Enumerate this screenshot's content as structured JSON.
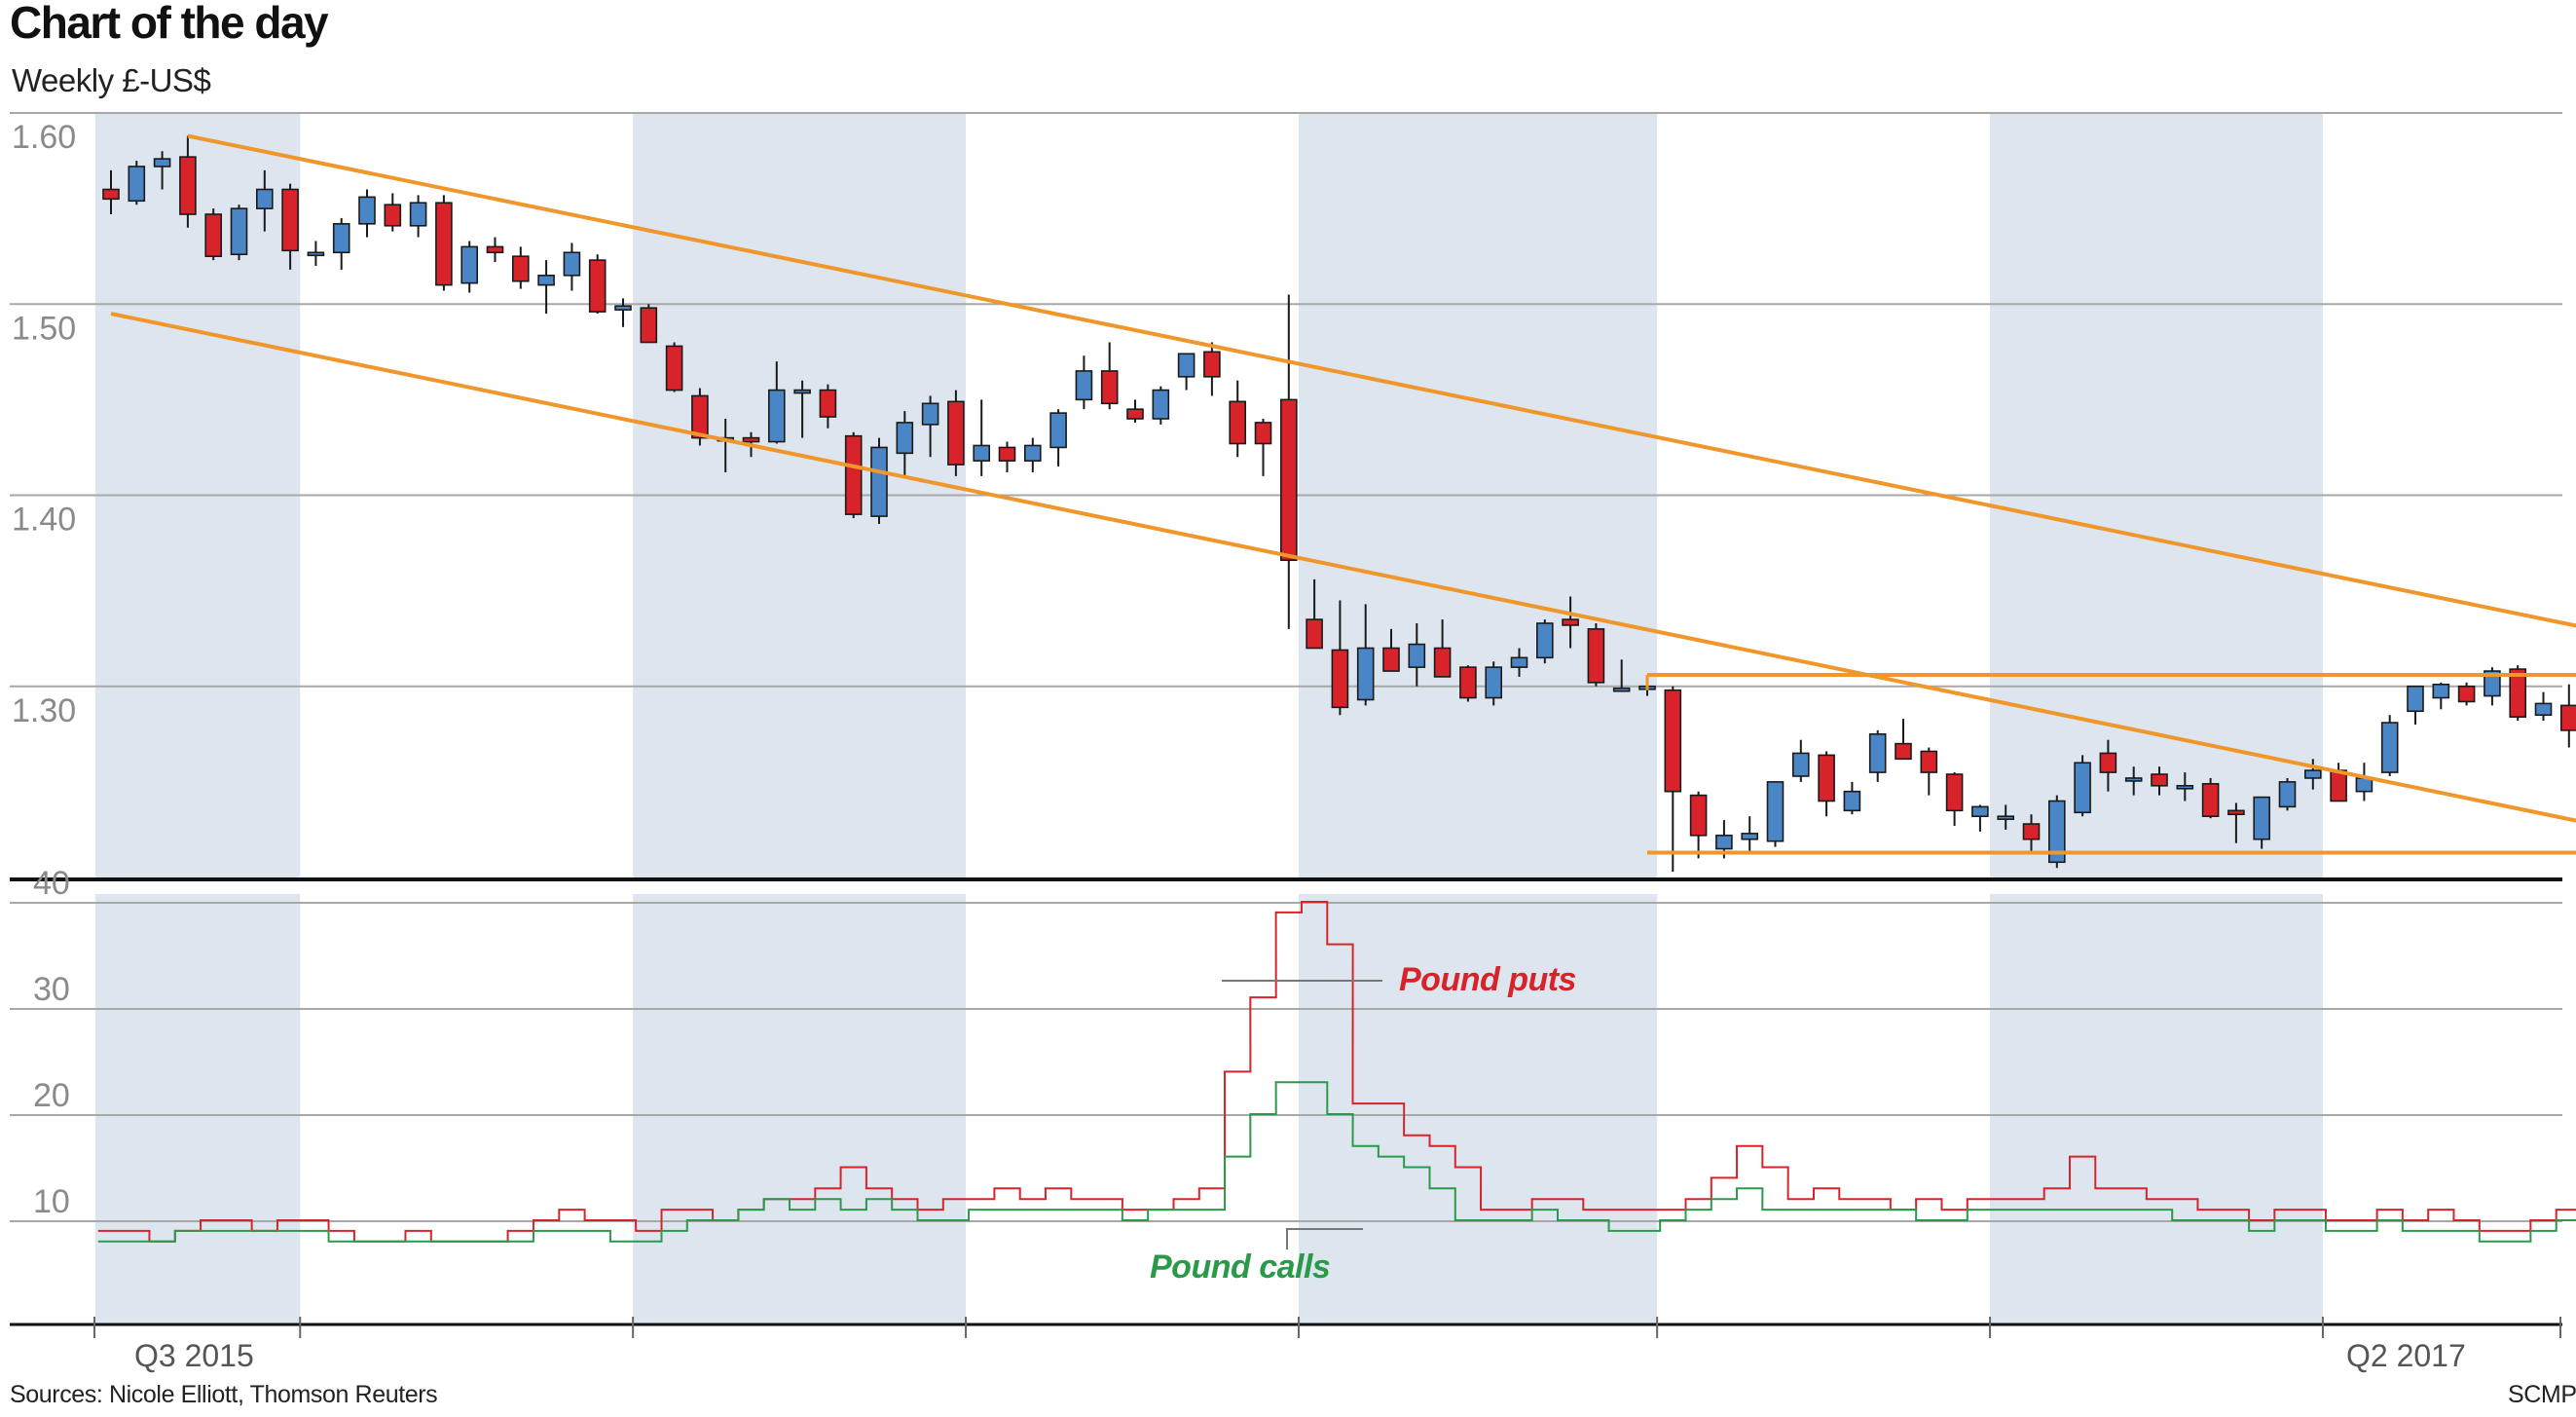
{
  "header": {
    "title": "Chart of the day",
    "subtitle": "Weekly £-US$"
  },
  "footer": {
    "source": "Sources: Nicole Elliott, Thomson Reuters",
    "credit": "SCMP"
  },
  "colors": {
    "up": "#4a86c5",
    "down": "#d9232a",
    "trend": "#f0962a",
    "band": "#dde6ee",
    "puts": "#d9232a",
    "calls": "#2a9a4a"
  },
  "chart_data": [
    {
      "type": "candlestick",
      "name": "price",
      "ylabel": "",
      "ylim": [
        1.2,
        1.6
      ],
      "yticks": [
        1.6,
        1.5,
        1.4,
        1.3
      ],
      "ytick_labels": [
        "1.60",
        "1.50",
        "1.40",
        "1.30"
      ],
      "x_labels": [
        {
          "label": "Q3 2015",
          "week": 1.5
        },
        {
          "label": "Q2 2017",
          "week": 94.5
        }
      ],
      "shaded_week_ranges": [
        [
          0,
          8
        ],
        [
          21,
          34
        ],
        [
          47,
          61
        ],
        [
          74,
          87
        ]
      ],
      "ohlc": [
        [
          1.56,
          1.57,
          1.547,
          1.555
        ],
        [
          1.554,
          1.575,
          1.552,
          1.572
        ],
        [
          1.572,
          1.58,
          1.56,
          1.576
        ],
        [
          1.577,
          1.588,
          1.54,
          1.547
        ],
        [
          1.547,
          1.55,
          1.523,
          1.525
        ],
        [
          1.526,
          1.552,
          1.523,
          1.55
        ],
        [
          1.55,
          1.57,
          1.538,
          1.56
        ],
        [
          1.56,
          1.563,
          1.518,
          1.528
        ],
        [
          1.527,
          1.533,
          1.52,
          1.527
        ],
        [
          1.527,
          1.545,
          1.518,
          1.542
        ],
        [
          1.542,
          1.56,
          1.535,
          1.556
        ],
        [
          1.552,
          1.558,
          1.538,
          1.541
        ],
        [
          1.541,
          1.557,
          1.535,
          1.553
        ],
        [
          1.553,
          1.557,
          1.507,
          1.51
        ],
        [
          1.511,
          1.533,
          1.506,
          1.53
        ],
        [
          1.53,
          1.535,
          1.522,
          1.527
        ],
        [
          1.525,
          1.53,
          1.508,
          1.512
        ],
        [
          1.51,
          1.523,
          1.495,
          1.515
        ],
        [
          1.515,
          1.532,
          1.507,
          1.527
        ],
        [
          1.523,
          1.526,
          1.495,
          1.496
        ],
        [
          1.497,
          1.503,
          1.488,
          1.499
        ],
        [
          1.498,
          1.5,
          1.48,
          1.48
        ],
        [
          1.478,
          1.48,
          1.454,
          1.455
        ],
        [
          1.452,
          1.456,
          1.426,
          1.43
        ],
        [
          1.43,
          1.44,
          1.412,
          1.43
        ],
        [
          1.43,
          1.433,
          1.42,
          1.428
        ],
        [
          1.428,
          1.47,
          1.427,
          1.455
        ],
        [
          1.455,
          1.46,
          1.43,
          1.455
        ],
        [
          1.455,
          1.458,
          1.435,
          1.441
        ],
        [
          1.431,
          1.433,
          1.388,
          1.39
        ],
        [
          1.389,
          1.43,
          1.385,
          1.425
        ],
        [
          1.422,
          1.444,
          1.41,
          1.438
        ],
        [
          1.437,
          1.452,
          1.42,
          1.448
        ],
        [
          1.449,
          1.455,
          1.41,
          1.416
        ],
        [
          1.418,
          1.45,
          1.41,
          1.426
        ],
        [
          1.425,
          1.428,
          1.412,
          1.418
        ],
        [
          1.418,
          1.43,
          1.412,
          1.426
        ],
        [
          1.425,
          1.445,
          1.415,
          1.443
        ],
        [
          1.45,
          1.473,
          1.445,
          1.465
        ],
        [
          1.465,
          1.48,
          1.445,
          1.448
        ],
        [
          1.445,
          1.45,
          1.438,
          1.44
        ],
        [
          1.44,
          1.457,
          1.437,
          1.455
        ],
        [
          1.462,
          1.474,
          1.455,
          1.474
        ],
        [
          1.475,
          1.48,
          1.452,
          1.462
        ],
        [
          1.449,
          1.46,
          1.42,
          1.427
        ],
        [
          1.438,
          1.44,
          1.41,
          1.427
        ],
        [
          1.45,
          1.505,
          1.33,
          1.366
        ],
        [
          1.335,
          1.356,
          1.322,
          1.32
        ],
        [
          1.319,
          1.345,
          1.285,
          1.289
        ],
        [
          1.293,
          1.343,
          1.29,
          1.32
        ],
        [
          1.32,
          1.33,
          1.308,
          1.308
        ],
        [
          1.31,
          1.333,
          1.3,
          1.322
        ],
        [
          1.32,
          1.335,
          1.305,
          1.305
        ],
        [
          1.31,
          1.311,
          1.292,
          1.294
        ],
        [
          1.294,
          1.313,
          1.29,
          1.31
        ],
        [
          1.31,
          1.32,
          1.305,
          1.315
        ],
        [
          1.315,
          1.335,
          1.312,
          1.333
        ],
        [
          1.335,
          1.347,
          1.32,
          1.332
        ],
        [
          1.33,
          1.333,
          1.3,
          1.302
        ],
        [
          1.299,
          1.314,
          1.298,
          1.299
        ],
        [
          1.3,
          1.303,
          1.295,
          1.3
        ],
        [
          1.298,
          1.3,
          1.203,
          1.245
        ],
        [
          1.243,
          1.245,
          1.21,
          1.222
        ],
        [
          1.215,
          1.23,
          1.21,
          1.222
        ],
        [
          1.22,
          1.232,
          1.212,
          1.223
        ],
        [
          1.219,
          1.25,
          1.216,
          1.25
        ],
        [
          1.253,
          1.272,
          1.25,
          1.265
        ],
        [
          1.264,
          1.266,
          1.232,
          1.24
        ],
        [
          1.235,
          1.25,
          1.233,
          1.245
        ],
        [
          1.255,
          1.277,
          1.25,
          1.275
        ],
        [
          1.27,
          1.283,
          1.265,
          1.262
        ],
        [
          1.266,
          1.268,
          1.243,
          1.255
        ],
        [
          1.254,
          1.255,
          1.227,
          1.235
        ],
        [
          1.232,
          1.238,
          1.224,
          1.237
        ],
        [
          1.231,
          1.238,
          1.225,
          1.232
        ],
        [
          1.228,
          1.233,
          1.212,
          1.22
        ],
        [
          1.208,
          1.243,
          1.205,
          1.24
        ],
        [
          1.234,
          1.264,
          1.232,
          1.26
        ],
        [
          1.265,
          1.272,
          1.245,
          1.255
        ],
        [
          1.252,
          1.258,
          1.243,
          1.252
        ],
        [
          1.254,
          1.258,
          1.243,
          1.248
        ],
        [
          1.247,
          1.255,
          1.24,
          1.248
        ],
        [
          1.249,
          1.252,
          1.231,
          1.232
        ],
        [
          1.235,
          1.239,
          1.218,
          1.233
        ],
        [
          1.22,
          1.242,
          1.215,
          1.242
        ],
        [
          1.237,
          1.252,
          1.235,
          1.25
        ],
        [
          1.252,
          1.262,
          1.246,
          1.256
        ],
        [
          1.256,
          1.26,
          1.24,
          1.24
        ],
        [
          1.245,
          1.26,
          1.24,
          1.252
        ],
        [
          1.255,
          1.285,
          1.253,
          1.281
        ],
        [
          1.287,
          1.3,
          1.28,
          1.3
        ],
        [
          1.294,
          1.302,
          1.288,
          1.301
        ],
        [
          1.3,
          1.302,
          1.29,
          1.292
        ],
        [
          1.295,
          1.31,
          1.29,
          1.308
        ],
        [
          1.309,
          1.311,
          1.282,
          1.284
        ],
        [
          1.285,
          1.297,
          1.282,
          1.291
        ],
        [
          1.29,
          1.301,
          1.268,
          1.277
        ]
      ],
      "trendlines": [
        {
          "name": "upper channel",
          "from": [
            3,
            1.588
          ],
          "to": [
            102,
            1.316
          ]
        },
        {
          "name": "lower channel",
          "from": [
            0,
            1.495
          ],
          "to": [
            102,
            1.214
          ]
        },
        {
          "name": "resistance",
          "from": [
            60,
            1.306
          ],
          "to": [
            102,
            1.306
          ]
        },
        {
          "name": "support",
          "from": [
            60,
            1.213
          ],
          "to": [
            102,
            1.213
          ]
        }
      ]
    },
    {
      "type": "line",
      "name": "options",
      "ylim": [
        3,
        43
      ],
      "yticks": [
        40,
        30,
        20,
        10
      ],
      "ytick_labels": [
        "40",
        "30",
        "20",
        "10"
      ],
      "series": [
        {
          "name": "Pound puts",
          "color": "#d9232a",
          "values": [
            9,
            9,
            8,
            9,
            10,
            10,
            9,
            10,
            10,
            9,
            8,
            8,
            9,
            8,
            8,
            8,
            9,
            10,
            11,
            10,
            10,
            9,
            11,
            11,
            10,
            11,
            12,
            12,
            13,
            15,
            13,
            12,
            11,
            12,
            12,
            13,
            12,
            13,
            12,
            12,
            11,
            11,
            12,
            13,
            24,
            31,
            39,
            40,
            36,
            21,
            21,
            18,
            17,
            15,
            11,
            11,
            12,
            12,
            11,
            11,
            11,
            11,
            12,
            14,
            17,
            15,
            12,
            13,
            12,
            12,
            11,
            12,
            11,
            12,
            12,
            12,
            13,
            16,
            13,
            13,
            12,
            12,
            11,
            11,
            10,
            11,
            11,
            10,
            10,
            11,
            10,
            11,
            10,
            9,
            9,
            10,
            11,
            13,
            14
          ]
        },
        {
          "name": "Pound calls",
          "color": "#2a9a4a",
          "values": [
            8,
            8,
            8,
            9,
            9,
            9,
            9,
            9,
            9,
            8,
            8,
            8,
            8,
            8,
            8,
            8,
            8,
            9,
            9,
            9,
            8,
            8,
            9,
            10,
            10,
            11,
            12,
            11,
            12,
            11,
            12,
            11,
            10,
            10,
            11,
            11,
            11,
            11,
            11,
            11,
            10,
            11,
            11,
            11,
            16,
            20,
            23,
            23,
            20,
            17,
            16,
            15,
            13,
            10,
            10,
            10,
            11,
            10,
            10,
            9,
            9,
            10,
            11,
            12,
            13,
            11,
            11,
            11,
            11,
            11,
            11,
            10,
            10,
            11,
            11,
            11,
            11,
            11,
            11,
            11,
            11,
            10,
            10,
            10,
            9,
            10,
            10,
            9,
            9,
            10,
            9,
            9,
            9,
            8,
            8,
            9,
            10,
            10,
            10
          ]
        }
      ],
      "annotations": [
        {
          "text": "Pound puts",
          "series": 0
        },
        {
          "text": "Pound calls",
          "series": 1
        }
      ]
    }
  ]
}
